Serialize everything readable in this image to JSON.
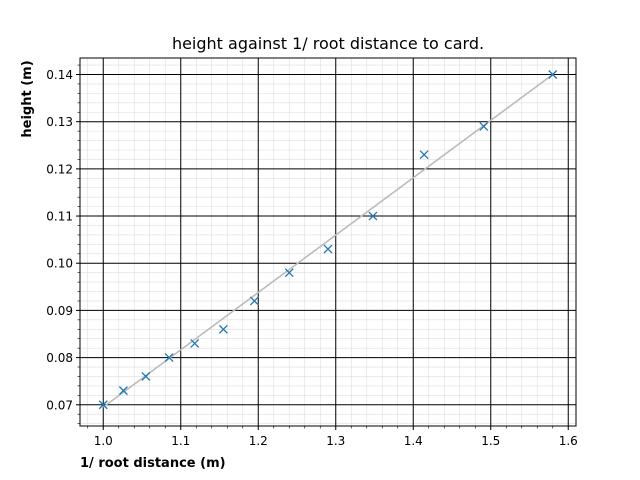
{
  "chart_data": {
    "type": "scatter",
    "title": "height against 1/ root distance to card.",
    "xlabel": "1/ root distance (m)",
    "ylabel": "height (m)",
    "xlim": [
      0.97,
      1.61
    ],
    "ylim": [
      0.0655,
      0.1435
    ],
    "x_major_ticks": [
      1.0,
      1.1,
      1.2,
      1.3,
      1.4,
      1.5,
      1.6
    ],
    "x_tick_labels": [
      "1.0",
      "1.1",
      "1.2",
      "1.3",
      "1.4",
      "1.5",
      "1.6"
    ],
    "y_major_ticks": [
      0.07,
      0.08,
      0.09,
      0.1,
      0.11,
      0.12,
      0.13,
      0.14
    ],
    "y_tick_labels": [
      "0.07",
      "0.08",
      "0.09",
      "0.10",
      "0.11",
      "0.12",
      "0.13",
      "0.14"
    ],
    "x_minor_step": 0.02,
    "y_minor_step": 0.002,
    "grid": "major and minor",
    "series": [
      {
        "marker": "x",
        "color": "#1f77b4",
        "x": [
          1.0,
          1.026,
          1.055,
          1.085,
          1.118,
          1.155,
          1.195,
          1.24,
          1.29,
          1.348,
          1.414,
          1.491,
          1.58
        ],
        "y": [
          0.07,
          0.073,
          0.076,
          0.08,
          0.083,
          0.086,
          0.092,
          0.098,
          0.103,
          0.11,
          0.123,
          0.129,
          0.14
        ]
      },
      {
        "marker": "none",
        "line": "solid",
        "color": "#bbbbbb",
        "x": [
          1.0,
          1.58
        ],
        "y": [
          0.0695,
          0.14
        ]
      }
    ]
  }
}
